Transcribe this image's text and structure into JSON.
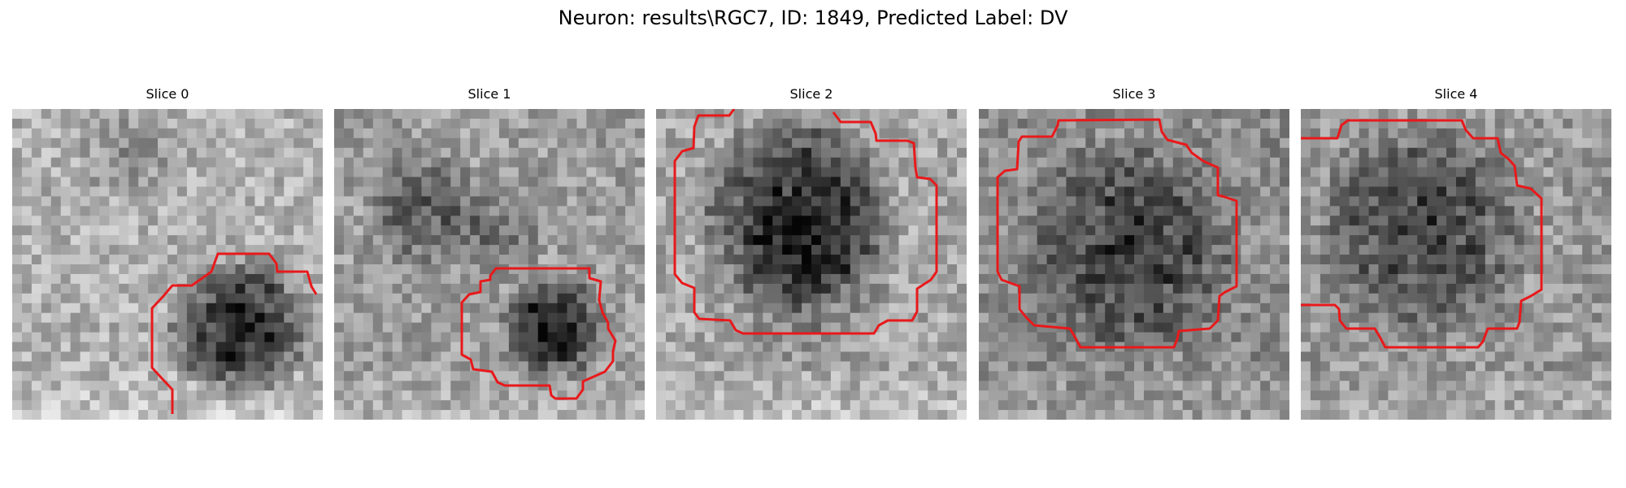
{
  "figure": {
    "title": "Neuron: results\\RGC7, ID: 1849, Predicted Label: DV",
    "colors": {
      "background": "#ffffff",
      "contour": "#e8191b",
      "colormap": "gray"
    }
  },
  "slices": [
    {
      "label": "Slice 0"
    },
    {
      "label": "Slice 1"
    },
    {
      "label": "Slice 2"
    },
    {
      "label": "Slice 3"
    },
    {
      "label": "Slice 4"
    }
  ]
}
